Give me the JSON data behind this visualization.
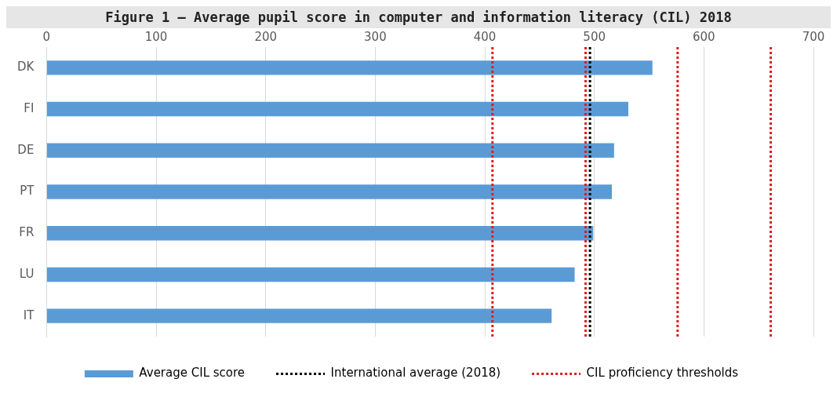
{
  "chart_data": {
    "type": "bar",
    "orientation": "horizontal",
    "title": "Figure 1 – Average pupil score in computer and information literacy (CIL) 2018",
    "categories": [
      "DK",
      "FI",
      "DE",
      "PT",
      "FR",
      "LU",
      "IT"
    ],
    "series": [
      {
        "name": "Average CIL score",
        "color": "#5b9bd5",
        "values": [
          553,
          531,
          518,
          516,
          499,
          482,
          461
        ]
      }
    ],
    "xlim": [
      0,
      700
    ],
    "xticks": [
      0,
      100,
      200,
      300,
      400,
      500,
      600,
      700
    ],
    "grid": "x",
    "legend": "bottom",
    "ref_lines": [
      {
        "axis": "x",
        "value": 496,
        "label": "International average (2018)",
        "color": "#000000",
        "line_style": "dotted"
      },
      {
        "axis": "x",
        "value": 407,
        "label": "CIL proficiency thresholds",
        "color": "#e31a1c",
        "line_style": "dotted"
      },
      {
        "axis": "x",
        "value": 492,
        "color": "#e31a1c",
        "line_style": "dotted"
      },
      {
        "axis": "x",
        "value": 576,
        "color": "#e31a1c",
        "line_style": "dotted"
      },
      {
        "axis": "x",
        "value": 661,
        "color": "#e31a1c",
        "line_style": "dotted"
      }
    ]
  }
}
